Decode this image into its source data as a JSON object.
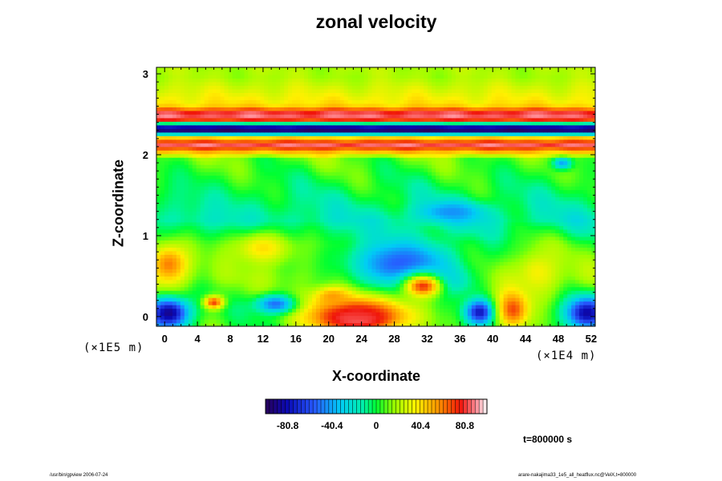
{
  "chart_data": {
    "type": "heatmap",
    "title": "zonal velocity",
    "xlabel": "X-coordinate",
    "ylabel": "Z-coordinate",
    "x_scale_note": "(×1E4 m)",
    "y_scale_note": "(×1E5 m)",
    "x_ticks": [
      0,
      4,
      8,
      12,
      16,
      20,
      24,
      28,
      32,
      36,
      40,
      44,
      48,
      52
    ],
    "y_ticks": [
      0,
      1,
      2,
      3
    ],
    "xlim": [
      -1,
      52.5
    ],
    "ylim": [
      -0.12,
      3.08
    ],
    "colorbar": {
      "ticks": [
        "-80.8",
        "-40.4",
        "0",
        "40.4",
        "80.8"
      ],
      "values": [
        -80.8,
        -40.4,
        0,
        40.4,
        80.8
      ],
      "range": [
        -101,
        101
      ]
    },
    "time_label": "t=800000 s",
    "bands": [
      {
        "z": 2.96,
        "u": 20
      },
      {
        "z": 2.62,
        "u": 40
      },
      {
        "z": 2.5,
        "u": 92
      },
      {
        "z": 2.43,
        "u": 70
      },
      {
        "z": 2.36,
        "u": -78
      },
      {
        "z": 2.3,
        "u": -95
      },
      {
        "z": 2.22,
        "u": 38
      },
      {
        "z": 2.13,
        "u": 88
      },
      {
        "z": 1.95,
        "u": 10
      },
      {
        "z": 1.5,
        "u": -5
      },
      {
        "z": 1.2,
        "u": -15
      },
      {
        "z": 0.9,
        "u": 5
      },
      {
        "z": 0.5,
        "u": 15
      },
      {
        "z": 0.1,
        "u": 5
      }
    ],
    "features": [
      {
        "x": 23.5,
        "z": -0.02,
        "rx": 3.8,
        "rz": 0.14,
        "u": 100
      },
      {
        "x": 23.5,
        "z": 0.05,
        "rx": 6.5,
        "rz": 0.25,
        "u": 82
      },
      {
        "x": 29.0,
        "z": 0.65,
        "rx": 6.5,
        "rz": 0.32,
        "u": -58
      },
      {
        "x": 33.0,
        "z": 0.45,
        "rx": 4.0,
        "rz": 0.18,
        "u": -40
      },
      {
        "x": 0.5,
        "z": 0.05,
        "rx": 2.6,
        "rz": 0.2,
        "u": -90
      },
      {
        "x": 51.5,
        "z": 0.05,
        "rx": 2.6,
        "rz": 0.2,
        "u": -85
      },
      {
        "x": 38.5,
        "z": 0.06,
        "rx": 1.8,
        "rz": 0.15,
        "u": -80
      },
      {
        "x": 13.5,
        "z": 0.16,
        "rx": 2.5,
        "rz": 0.12,
        "u": -52
      },
      {
        "x": 31.5,
        "z": 0.38,
        "rx": 2.5,
        "rz": 0.15,
        "u": 72
      },
      {
        "x": 42.5,
        "z": 0.1,
        "rx": 2.0,
        "rz": 0.25,
        "u": 70
      },
      {
        "x": 0.5,
        "z": 0.65,
        "rx": 2.5,
        "rz": 0.25,
        "u": 60
      },
      {
        "x": 6.0,
        "z": 0.18,
        "rx": 1.2,
        "rz": 0.08,
        "u": 70
      },
      {
        "x": 20.5,
        "z": 0.25,
        "rx": 2.2,
        "rz": 0.12,
        "u": 55
      },
      {
        "x": 35.0,
        "z": 1.3,
        "rx": 4.0,
        "rz": 0.12,
        "u": -45
      },
      {
        "x": 12.0,
        "z": 0.85,
        "rx": 3.5,
        "rz": 0.2,
        "u": 40
      },
      {
        "x": 45.5,
        "z": 0.55,
        "rx": 3.0,
        "rz": 0.3,
        "u": 35
      },
      {
        "x": 48.5,
        "z": 1.9,
        "rx": 1.2,
        "rz": 0.08,
        "u": -40
      }
    ]
  },
  "footer": {
    "left": "/usr/bin/gpview 2006-07-24",
    "right": "arare-nakajima33_1e5_all_heatflux.nc@VelX,t=800000"
  }
}
